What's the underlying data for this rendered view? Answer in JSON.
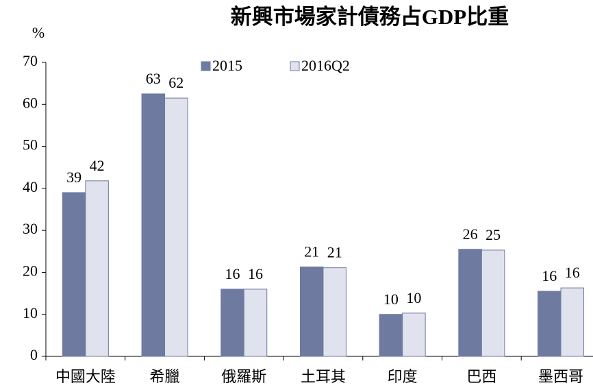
{
  "chart_data": {
    "type": "bar",
    "title": "新興市場家計債務占GDP比重",
    "y_label": "%",
    "categories": [
      "中國大陸",
      "希臘",
      "俄羅斯",
      "土耳其",
      "印度",
      "巴西",
      "墨西哥"
    ],
    "series": [
      {
        "name": "2015",
        "color": "#6e7aa0",
        "values": [
          39,
          62.5,
          16,
          21.3,
          10,
          25.5,
          15.5
        ],
        "value_labels": [
          "39",
          "63",
          "16",
          "21",
          "10",
          "26",
          "16"
        ]
      },
      {
        "name": "2016Q2",
        "color": "#e0e3ee",
        "values": [
          41.8,
          61.5,
          16,
          21.1,
          10.3,
          25.3,
          16.3
        ],
        "value_labels": [
          "42",
          "62",
          "16",
          "21",
          "10",
          "25",
          "16"
        ]
      }
    ],
    "ylim": [
      0,
      70
    ],
    "yticks": [
      0,
      10,
      20,
      30,
      40,
      50,
      60,
      70
    ]
  }
}
